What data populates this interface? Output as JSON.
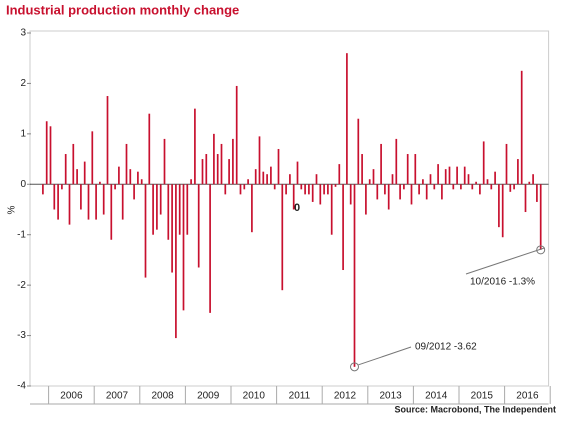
{
  "chart_data": {
    "type": "bar",
    "title": "Industrial production monthly change",
    "y_label": "%",
    "source": "Source: Macrobond, The Independent",
    "color": "#c8102e",
    "ylim": [
      -4,
      3
    ],
    "yticks": [
      -4,
      -3,
      -2,
      -1,
      0,
      1,
      2,
      3
    ],
    "categories": [
      null,
      null,
      null,
      null,
      null,
      null,
      null,
      "2006",
      null,
      null,
      null,
      null,
      null,
      null,
      null,
      null,
      null,
      null,
      null,
      "2007",
      null,
      null,
      null,
      null,
      null,
      null,
      null,
      null,
      null,
      null,
      null,
      "2008",
      null,
      null,
      null,
      null,
      null,
      null,
      null,
      null,
      null,
      null,
      null,
      "2009",
      null,
      null,
      null,
      null,
      null,
      null,
      null,
      null,
      null,
      null,
      null,
      "2010",
      null,
      null,
      null,
      null,
      null,
      null,
      null,
      null,
      null,
      null,
      null,
      "2011",
      null,
      null,
      null,
      null,
      null,
      null,
      null,
      null,
      null,
      null,
      null,
      "2012",
      null,
      null,
      null,
      null,
      null,
      null,
      null,
      null,
      null,
      null,
      null,
      "2013",
      null,
      null,
      null,
      null,
      null,
      null,
      null,
      null,
      null,
      null,
      null,
      "2014",
      null,
      null,
      null,
      null,
      null,
      null,
      null,
      null,
      null,
      null,
      null,
      "2015",
      null,
      null,
      null,
      null,
      null,
      null,
      null,
      null,
      null,
      null,
      null,
      "2016",
      null,
      null,
      null,
      null
    ],
    "values": [
      -0.2,
      1.25,
      1.15,
      -0.5,
      -0.7,
      -0.1,
      0.6,
      -0.8,
      0.8,
      0.3,
      -0.5,
      0.45,
      -0.7,
      1.05,
      -0.7,
      0.05,
      -0.6,
      1.75,
      -1.1,
      -0.1,
      0.35,
      -0.7,
      0.8,
      0.3,
      -0.3,
      0.25,
      0.1,
      -1.85,
      1.4,
      -1.0,
      -0.9,
      -0.6,
      0.9,
      -1.1,
      -1.75,
      -3.05,
      -1.0,
      -2.5,
      -1.0,
      0.1,
      1.5,
      -1.65,
      0.5,
      0.6,
      -2.55,
      1.0,
      0.6,
      0.8,
      -0.2,
      0.5,
      0.9,
      1.95,
      -0.2,
      -0.1,
      0.1,
      -0.95,
      0.3,
      0.95,
      0.25,
      0.2,
      0.35,
      -0.1,
      0.7,
      -2.1,
      -0.2,
      0.2,
      -0.5,
      0.45,
      -0.1,
      -0.2,
      -0.2,
      -0.35,
      0.2,
      -0.4,
      -0.2,
      -0.2,
      -1.0,
      -0.05,
      0.4,
      -1.7,
      2.6,
      -0.4,
      -3.62,
      1.3,
      0.6,
      -0.6,
      0.1,
      0.3,
      -0.3,
      0.8,
      -0.2,
      -0.5,
      0.2,
      0.9,
      -0.3,
      -0.1,
      0.6,
      -0.4,
      0.6,
      -0.2,
      0.1,
      -0.3,
      0.2,
      -0.1,
      0.4,
      -0.3,
      0.3,
      0.35,
      -0.1,
      0.35,
      -0.1,
      0.35,
      0.2,
      -0.1,
      0.05,
      -0.2,
      0.85,
      0.1,
      -0.1,
      0.25,
      -0.85,
      -1.05,
      0.8,
      -0.15,
      -0.1,
      0.5,
      2.25,
      -0.55,
      0.05,
      0.2,
      -0.35,
      -1.3
    ],
    "annotations": [
      {
        "text": "09/2012 -3.62",
        "index": 82
      },
      {
        "text": "10/2016  -1.3%",
        "index": 131
      },
      {
        "text": "0"
      }
    ]
  }
}
